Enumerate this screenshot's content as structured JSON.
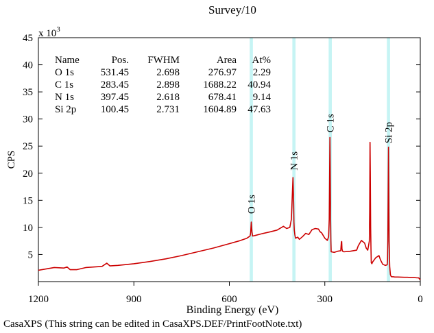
{
  "chart_data": {
    "type": "line",
    "title": "Survey/10",
    "xlabel": "Binding Energy (eV)",
    "ylabel": "CPS",
    "y_multiplier": "x 10",
    "y_multiplier_exp": "3",
    "footnote": "CasaXPS (This string can be edited in CasaXPS.DEF/PrintFootNote.txt)",
    "xlim": [
      1200,
      0
    ],
    "ylim": [
      0,
      45
    ],
    "x_ticks": [
      "1200",
      "900",
      "600",
      "300",
      "0"
    ],
    "y_ticks": [
      "5",
      "10",
      "15",
      "20",
      "25",
      "30",
      "35",
      "40",
      "45"
    ],
    "grid": false,
    "series_color": "#cc0000",
    "band_color": "#c6f4f4",
    "table": {
      "headers": [
        "Name",
        "Pos.",
        "FWHM",
        "Area",
        "At%"
      ],
      "rows": [
        [
          "O 1s",
          "531.45",
          "2.698",
          "276.97",
          "2.29"
        ],
        [
          "C 1s",
          "283.45",
          "2.898",
          "1688.22",
          "40.94"
        ],
        [
          "N 1s",
          "397.45",
          "2.618",
          "678.41",
          "9.14"
        ],
        [
          "Si 2p",
          "100.45",
          "2.731",
          "1604.89",
          "47.63"
        ]
      ]
    },
    "regions": [
      {
        "label": "O 1s",
        "from": 536,
        "to": 526,
        "label_y": 12.5
      },
      {
        "label": "N 1s",
        "from": 402,
        "to": 392,
        "label_y": 20.5
      },
      {
        "label": "C 1s",
        "from": 288,
        "to": 278,
        "label_y": 27.5
      },
      {
        "label": "Si 2p",
        "from": 105,
        "to": 95,
        "label_y": 25.5
      }
    ],
    "series": [
      {
        "x": [
          1200,
          1150,
          1120,
          1110,
          1100,
          1080,
          1050,
          1000,
          985,
          975,
          950,
          900,
          850,
          800,
          750,
          700,
          650,
          600,
          570,
          545,
          540,
          535,
          533,
          531,
          529,
          527,
          520,
          500,
          470,
          450,
          430,
          420,
          410,
          405,
          400,
          398,
          397,
          396,
          394,
          392,
          385,
          380,
          370,
          360,
          350,
          340,
          330,
          320,
          315,
          310,
          300,
          292,
          288,
          286,
          285,
          284,
          283,
          282,
          281,
          280,
          270,
          260,
          250,
          248,
          247,
          246,
          244,
          240,
          220,
          200,
          195,
          185,
          175,
          170,
          165,
          160,
          159,
          158,
          157,
          156,
          155,
          154,
          152,
          150,
          140,
          130,
          125,
          118,
          110,
          104,
          103,
          102,
          101,
          100,
          99,
          98,
          96,
          94,
          92,
          90,
          85,
          80,
          70,
          50,
          40,
          30,
          20,
          10,
          5,
          0
        ],
        "y": [
          2.1,
          2.6,
          2.5,
          2.7,
          2.2,
          2.2,
          2.6,
          2.8,
          3.4,
          2.9,
          3.0,
          3.3,
          3.7,
          4.2,
          4.8,
          5.5,
          6.2,
          7.0,
          7.5,
          8.0,
          8.2,
          8.4,
          9.0,
          11.0,
          9.2,
          8.4,
          8.5,
          8.8,
          9.2,
          9.5,
          10.2,
          9.8,
          10.0,
          11.5,
          19.2,
          14.5,
          11.0,
          9.5,
          8.6,
          8.0,
          8.2,
          7.8,
          8.3,
          8.9,
          8.7,
          9.6,
          9.8,
          9.7,
          9.2,
          9.0,
          8.0,
          7.6,
          8.3,
          11.5,
          19.0,
          26.6,
          21.0,
          12.5,
          7.5,
          5.5,
          5.4,
          5.6,
          5.7,
          7.3,
          7.4,
          6.0,
          5.6,
          5.5,
          5.6,
          5.8,
          6.6,
          7.6,
          7.1,
          6.2,
          5.8,
          7.5,
          13.0,
          25.7,
          20.0,
          10.0,
          6.0,
          3.5,
          3.3,
          3.6,
          4.4,
          4.8,
          4.0,
          3.2,
          3.0,
          3.1,
          4.0,
          7.5,
          15.0,
          24.8,
          17.0,
          7.5,
          2.8,
          1.3,
          1.0,
          0.9,
          0.9,
          0.85,
          0.85,
          0.8,
          0.8,
          0.75,
          0.75,
          0.7,
          0.7,
          0.3
        ]
      }
    ]
  }
}
